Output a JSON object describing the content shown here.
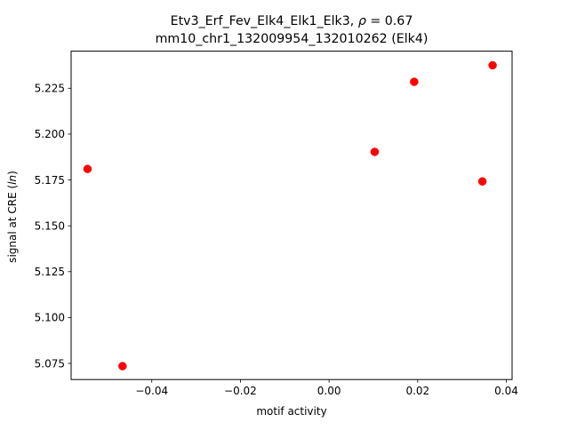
{
  "chart_data": {
    "type": "scatter",
    "title_line1_prefix": "Etv3_Erf_Fev_Elk4_Elk1_Elk3, ",
    "title_line1_rho_symbol": "ρ",
    "title_line1_rho_value": " = 0.67",
    "title_line2": "mm10_chr1_132009954_132010262 (Elk4)",
    "xlabel": "motif activity",
    "ylabel_prefix": "signal at CRE (",
    "ylabel_italic": "ln",
    "ylabel_suffix": ")",
    "xlim": [
      -0.0582,
      0.0413
    ],
    "ylim": [
      5.0662,
      5.2452
    ],
    "x_ticks": [
      {
        "value": -0.04,
        "label": "−0.04"
      },
      {
        "value": -0.02,
        "label": "−0.02"
      },
      {
        "value": 0.0,
        "label": "0.00"
      },
      {
        "value": 0.02,
        "label": "0.02"
      },
      {
        "value": 0.04,
        "label": "0.04"
      }
    ],
    "y_ticks": [
      {
        "value": 5.075,
        "label": "5.075"
      },
      {
        "value": 5.1,
        "label": "5.100"
      },
      {
        "value": 5.125,
        "label": "5.125"
      },
      {
        "value": 5.15,
        "label": "5.150"
      },
      {
        "value": 5.175,
        "label": "5.175"
      },
      {
        "value": 5.2,
        "label": "5.200"
      },
      {
        "value": 5.225,
        "label": "5.225"
      }
    ],
    "series": [
      {
        "color": "#ff0000",
        "marker": "circle",
        "points": [
          {
            "x": -0.0545,
            "y": 5.181
          },
          {
            "x": -0.0466,
            "y": 5.0735
          },
          {
            "x": 0.0103,
            "y": 5.1903
          },
          {
            "x": 0.0192,
            "y": 5.2285
          },
          {
            "x": 0.0346,
            "y": 5.1742
          },
          {
            "x": 0.0369,
            "y": 5.2375
          }
        ]
      }
    ],
    "grid": false,
    "legend": "none"
  }
}
